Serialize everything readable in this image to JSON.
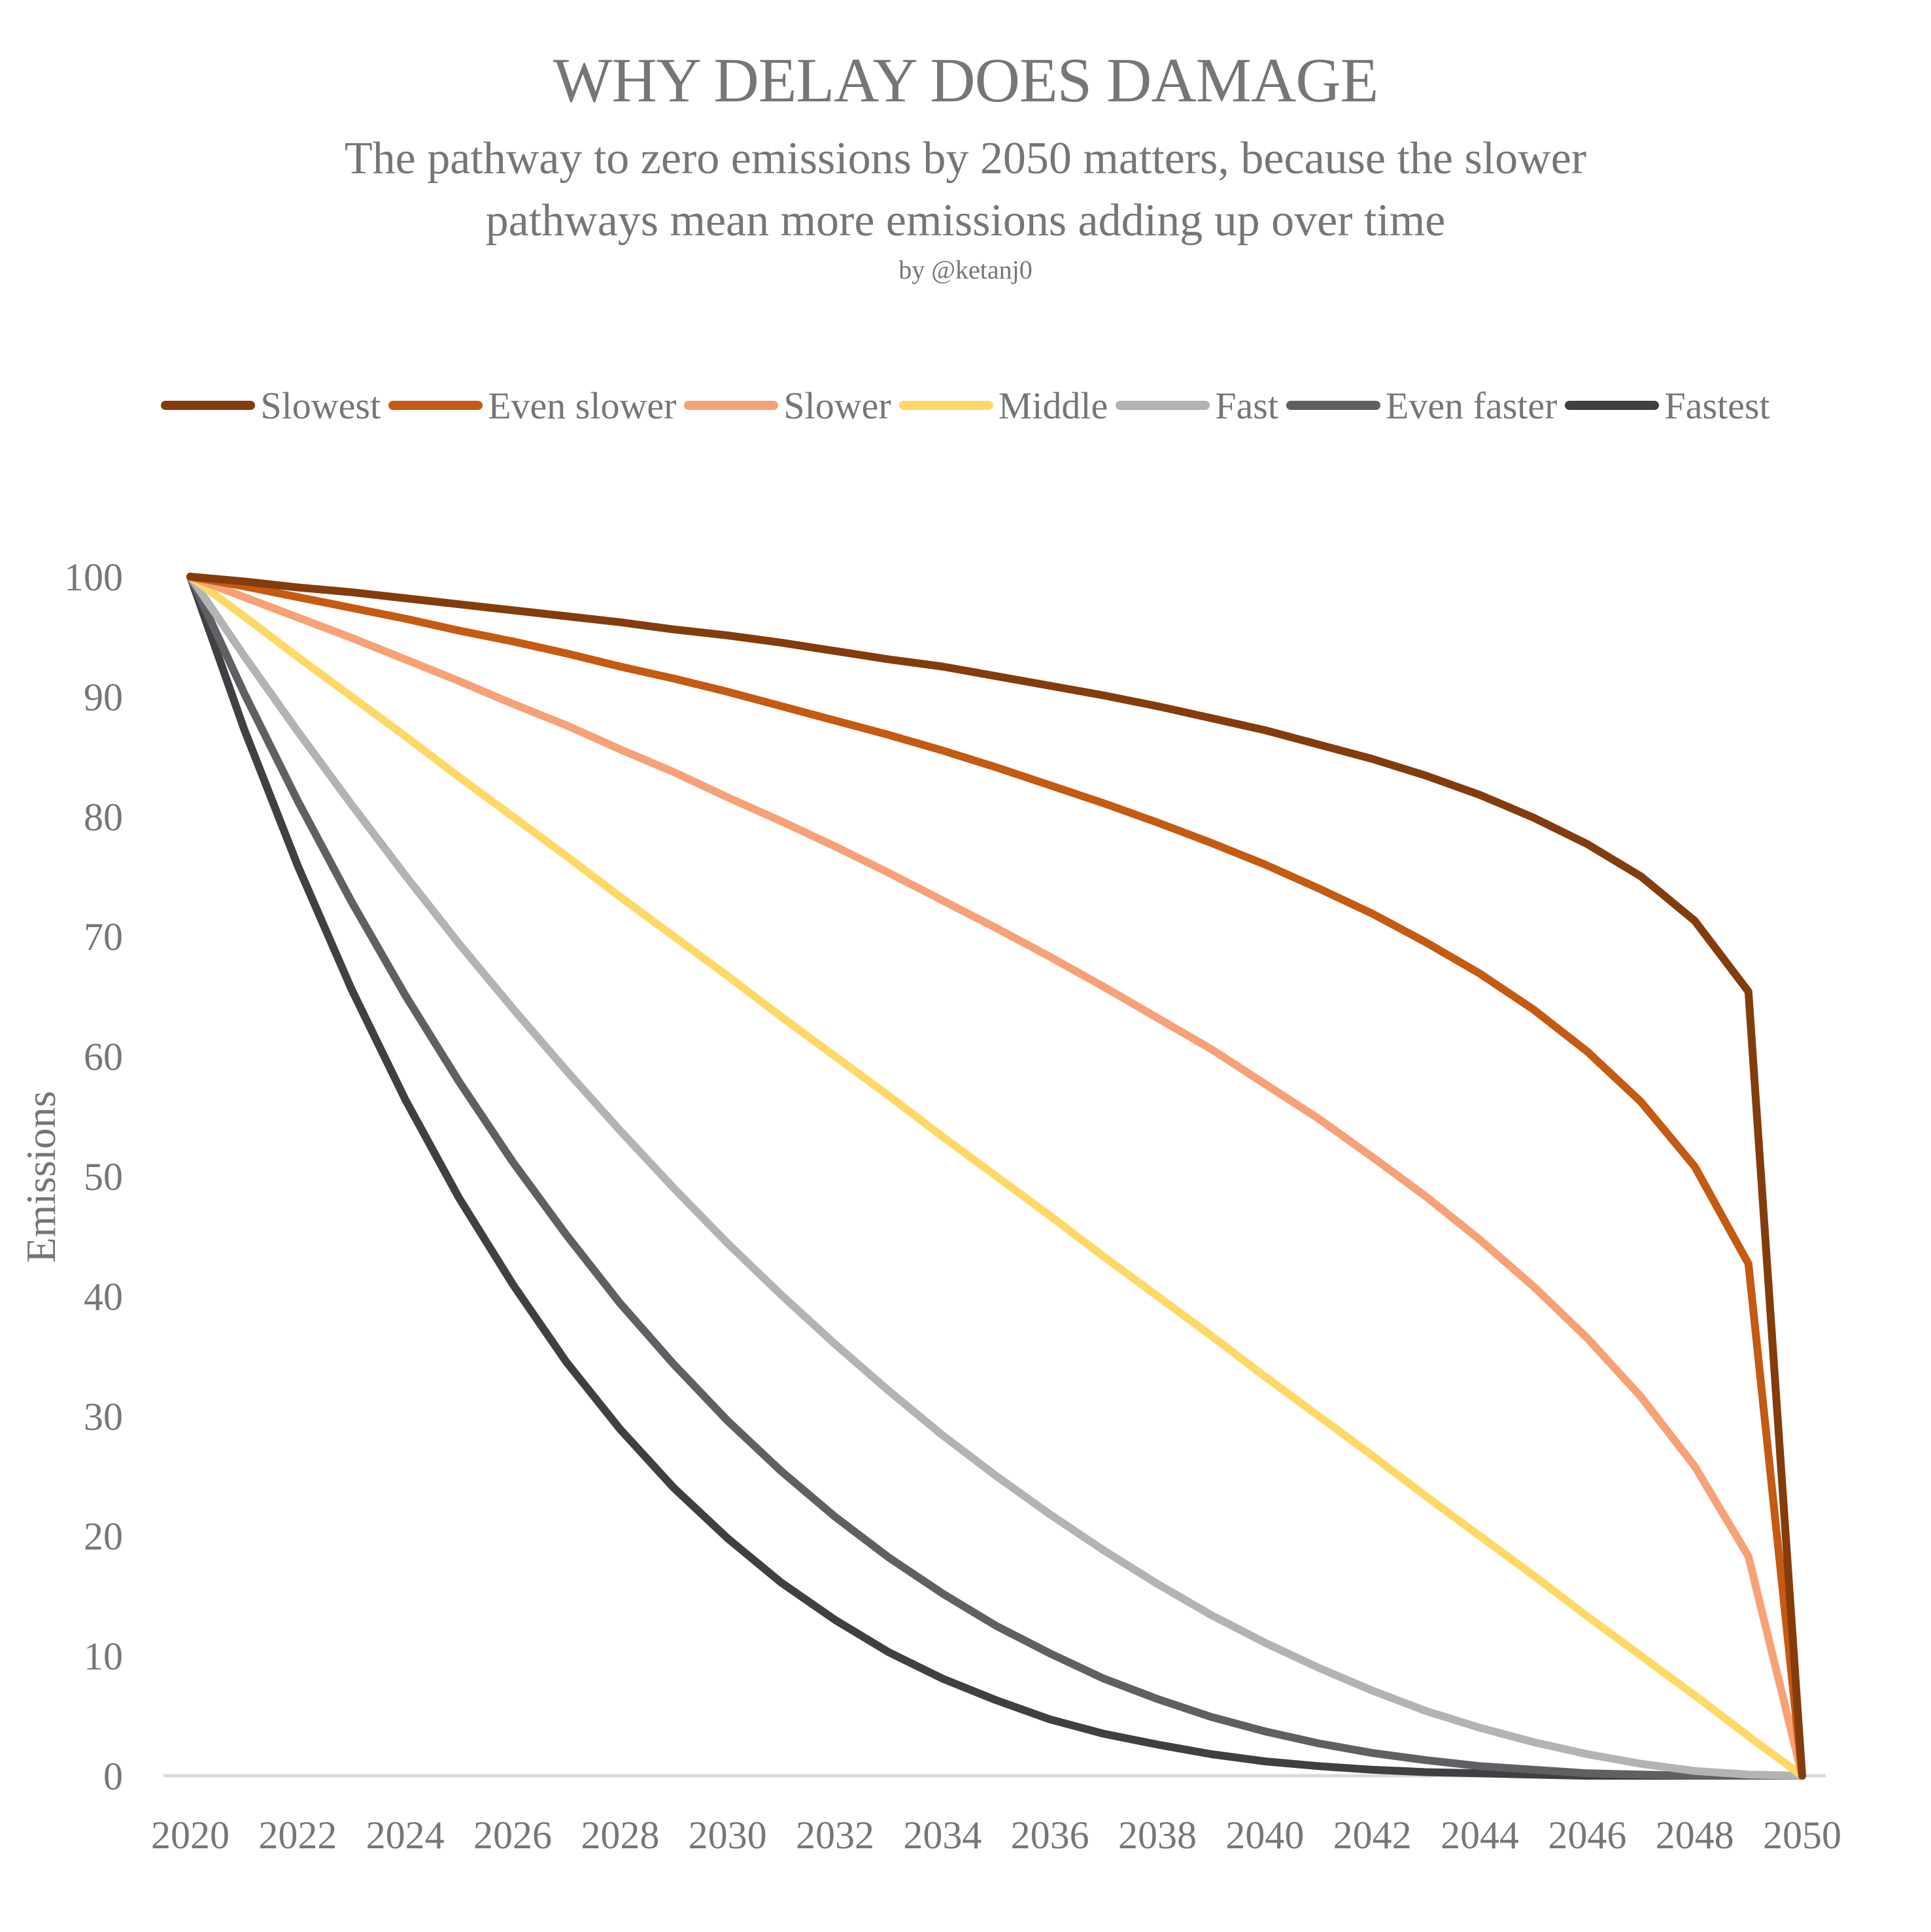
{
  "header": {
    "title": "WHY DELAY DOES DAMAGE",
    "subtitle_line1": "The pathway to zero emissions by 2050 matters, because the slower",
    "subtitle_line2": "pathways mean more emissions adding up over time",
    "byline": "by @ketanj0"
  },
  "chart_data": {
    "type": "line",
    "title": "WHY DELAY DOES DAMAGE",
    "subtitle": "The pathway to zero emissions by 2050 matters, because the slower pathways mean more emissions adding up over time",
    "xlabel": "",
    "ylabel": "Emissions",
    "xlim": [
      2020,
      2050
    ],
    "ylim": [
      0,
      100
    ],
    "x_ticks": [
      "2020",
      "2022",
      "2024",
      "2026",
      "2028",
      "2030",
      "2032",
      "2034",
      "2036",
      "2038",
      "2040",
      "2042",
      "2044",
      "2046",
      "2048",
      "2050"
    ],
    "y_ticks": [
      "0",
      "10",
      "20",
      "30",
      "40",
      "50",
      "60",
      "70",
      "80",
      "90",
      "100"
    ],
    "grid": false,
    "legend_position": "top",
    "x": [
      2020,
      2021,
      2022,
      2023,
      2024,
      2025,
      2026,
      2027,
      2028,
      2029,
      2030,
      2031,
      2032,
      2033,
      2034,
      2035,
      2036,
      2037,
      2038,
      2039,
      2040,
      2041,
      2042,
      2043,
      2044,
      2045,
      2046,
      2047,
      2048,
      2049,
      2050
    ],
    "series": [
      {
        "name": "Slowest",
        "color": "#843C0C",
        "values": [
          100,
          99.6,
          99.1,
          98.7,
          98.2,
          97.7,
          97.2,
          96.7,
          96.2,
          95.6,
          95.1,
          94.5,
          93.8,
          93.1,
          92.5,
          91.7,
          90.9,
          90.1,
          89.2,
          88.2,
          87.2,
          86.0,
          84.8,
          83.4,
          81.8,
          79.9,
          77.7,
          75.0,
          71.3,
          65.4,
          0
        ]
      },
      {
        "name": "Even slower",
        "color": "#C55A11",
        "values": [
          100,
          99.2,
          98.3,
          97.4,
          96.5,
          95.5,
          94.6,
          93.6,
          92.5,
          91.5,
          90.4,
          89.2,
          88.0,
          86.8,
          85.5,
          84.1,
          82.6,
          81.1,
          79.5,
          77.8,
          76.0,
          74.0,
          71.9,
          69.5,
          66.9,
          63.9,
          60.4,
          56.2,
          50.8,
          42.7,
          0
        ]
      },
      {
        "name": "Slower",
        "color": "#F7A177",
        "values": [
          100,
          98.3,
          96.6,
          94.9,
          93.1,
          91.3,
          89.4,
          87.6,
          85.6,
          83.7,
          81.6,
          79.6,
          77.5,
          75.3,
          73.0,
          70.7,
          68.3,
          65.8,
          63.2,
          60.6,
          57.7,
          54.8,
          51.6,
          48.3,
          44.7,
          40.8,
          36.5,
          31.6,
          25.8,
          18.3,
          0
        ]
      },
      {
        "name": "Middle",
        "color": "#FFD966",
        "values": [
          100,
          96.7,
          93.3,
          90,
          86.7,
          83.3,
          80,
          76.7,
          73.3,
          70,
          66.7,
          63.3,
          60,
          56.7,
          53.3,
          50,
          46.7,
          43.3,
          40,
          36.7,
          33.3,
          30,
          26.7,
          23.3,
          20,
          16.7,
          13.3,
          10,
          6.7,
          3.3,
          0
        ]
      },
      {
        "name": "Fast",
        "color": "#B3B3B6",
        "values": [
          100,
          93.4,
          87.1,
          81,
          75.1,
          69.4,
          64,
          58.8,
          53.8,
          49,
          44.4,
          40.1,
          36,
          32.1,
          28.4,
          25,
          21.8,
          18.8,
          16,
          13.4,
          11.1,
          9,
          7.1,
          5.4,
          4,
          2.8,
          1.8,
          1,
          0.4,
          0.1,
          0
        ]
      },
      {
        "name": "Even faster",
        "color": "#5F5F64",
        "values": [
          100,
          90.3,
          81.3,
          72.9,
          65.1,
          57.9,
          51.2,
          45.1,
          39.4,
          34.3,
          29.6,
          25.4,
          21.6,
          18.2,
          15.2,
          12.5,
          10.2,
          8.1,
          6.4,
          4.9,
          3.7,
          2.7,
          1.9,
          1.3,
          0.8,
          0.5,
          0.2,
          0.1,
          0.0,
          0.0,
          0
        ]
      },
      {
        "name": "Fastest",
        "color": "#404043",
        "values": [
          100,
          87.3,
          75.9,
          65.6,
          56.4,
          48.2,
          41,
          34.5,
          28.9,
          24,
          19.8,
          16.1,
          13,
          10.3,
          8.1,
          6.3,
          4.7,
          3.5,
          2.6,
          1.8,
          1.2,
          0.8,
          0.5,
          0.3,
          0.2,
          0.1,
          0.0,
          0.0,
          0.0,
          0.0,
          0
        ]
      }
    ]
  },
  "colors": {
    "text": "#767676",
    "axis_line": "#D9D9D9",
    "background": "#FFFFFF"
  }
}
